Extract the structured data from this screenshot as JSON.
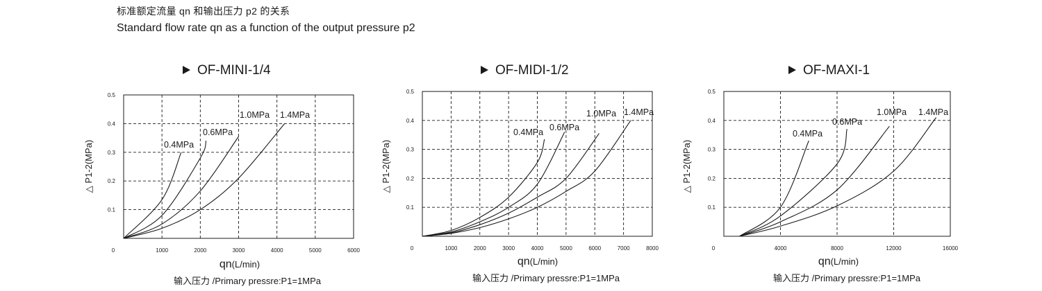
{
  "header": {
    "title_cn": "标准额定流量 qn 和输出压力 p2 的关系",
    "title_en": "Standard flow rate qn as a function of the output pressure p2"
  },
  "chart_data": [
    {
      "type": "line",
      "title": "OF-MINI-1/4",
      "xlabel": "qn(L/min)",
      "ylabel": "△ P1-2(MPa)",
      "footer": "输入压力 /Primary pressre:P1=1MPa",
      "xlim": [
        0,
        6000
      ],
      "ylim": [
        0,
        0.5
      ],
      "x_ticks": [
        "0",
        "1000",
        "2000",
        "3000",
        "4000",
        "5000",
        "6000"
      ],
      "y_ticks": [
        "0.1",
        "0.2",
        "0.3",
        "0.4",
        "0.5"
      ],
      "grid": true,
      "series": [
        {
          "name": "0.4MPa",
          "x": [
            0,
            1000,
            1500
          ],
          "y": [
            0,
            0.135,
            0.3
          ]
        },
        {
          "name": "0.6MPa",
          "x": [
            0,
            1000,
            2000,
            2150
          ],
          "y": [
            0,
            0.08,
            0.28,
            0.34
          ]
        },
        {
          "name": "1.0MPa",
          "x": [
            0,
            1000,
            2000,
            3000
          ],
          "y": [
            0,
            0.05,
            0.165,
            0.355
          ]
        },
        {
          "name": "1.4MPa",
          "x": [
            0,
            1000,
            2000,
            3000,
            4200
          ],
          "y": [
            0,
            0.035,
            0.1,
            0.21,
            0.4
          ]
        }
      ]
    },
    {
      "type": "line",
      "title": "OF-MIDI-1/2",
      "xlabel": "qn(L/min)",
      "ylabel": "△ P1-2(MPa)",
      "footer": "输入压力 /Primary pressre:P1=1MPa",
      "xlim": [
        0,
        8000
      ],
      "ylim": [
        0,
        0.5
      ],
      "x_ticks": [
        "0",
        "1000",
        "2000",
        "3000",
        "4000",
        "5000",
        "6000",
        "7000",
        "8000"
      ],
      "y_ticks": [
        "0.1",
        "0.2",
        "0.3",
        "0.4",
        "0.5"
      ],
      "grid": true,
      "series": [
        {
          "name": "0.4MPa",
          "x": [
            0,
            1000,
            2000,
            3000,
            4000,
            4250
          ],
          "y": [
            0,
            0.02,
            0.065,
            0.135,
            0.255,
            0.335
          ]
        },
        {
          "name": "0.6MPa",
          "x": [
            0,
            1000,
            2000,
            3000,
            4000,
            4950
          ],
          "y": [
            0,
            0.015,
            0.05,
            0.1,
            0.18,
            0.36
          ]
        },
        {
          "name": "1.0MPa",
          "x": [
            0,
            1000,
            2000,
            3000,
            4000,
            5000,
            6150
          ],
          "y": [
            0,
            0.012,
            0.04,
            0.08,
            0.135,
            0.2,
            0.355
          ]
        },
        {
          "name": "1.4MPa",
          "x": [
            0,
            1000,
            2000,
            3000,
            4000,
            5000,
            6000,
            7250
          ],
          "y": [
            0,
            0.01,
            0.03,
            0.06,
            0.1,
            0.155,
            0.225,
            0.4
          ]
        }
      ]
    },
    {
      "type": "line",
      "title": "OF-MAXI-1",
      "xlabel": "qn(L/min)",
      "ylabel": "△ P1-2(MPa)",
      "footer": "输入压力 /Primary pressre:P1=1MPa",
      "xlim": [
        0,
        16000
      ],
      "ylim": [
        0,
        0.5
      ],
      "x_ticks": [
        "0",
        "4000",
        "8000",
        "12000",
        "16000"
      ],
      "y_ticks": [
        "0.1",
        "0.2",
        "0.3",
        "0.4",
        "0.5"
      ],
      "grid": true,
      "series": [
        {
          "name": "0.4MPa",
          "x": [
            1100,
            4000,
            6000
          ],
          "y": [
            0,
            0.1,
            0.33
          ]
        },
        {
          "name": "0.6MPa",
          "x": [
            1100,
            4000,
            8000,
            8700
          ],
          "y": [
            0,
            0.07,
            0.25,
            0.37
          ]
        },
        {
          "name": "1.0MPa",
          "x": [
            1100,
            4000,
            8000,
            11700
          ],
          "y": [
            0,
            0.05,
            0.16,
            0.38
          ]
        },
        {
          "name": "1.4MPa",
          "x": [
            1100,
            4000,
            8000,
            12000,
            15000
          ],
          "y": [
            0,
            0.035,
            0.105,
            0.225,
            0.41
          ]
        }
      ]
    }
  ]
}
